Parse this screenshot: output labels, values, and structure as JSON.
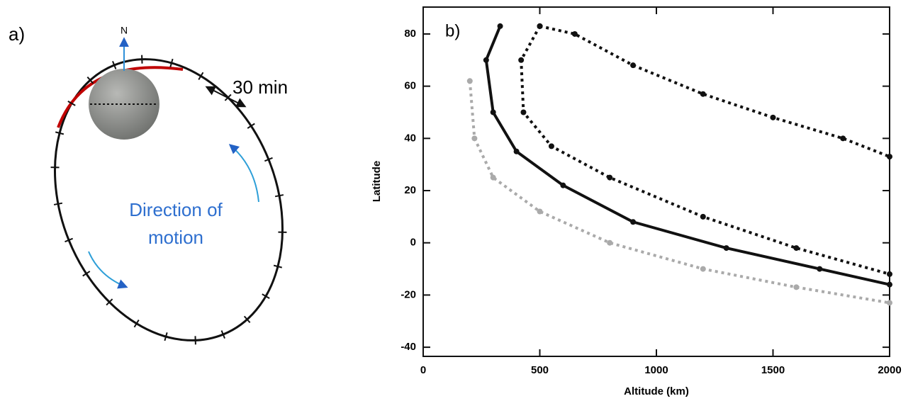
{
  "panel_a": {
    "label": "a)",
    "north": "N",
    "interval": "30 min",
    "motion": [
      "Direction of",
      "motion"
    ]
  },
  "chart_data": {
    "type": "line",
    "label": "b)",
    "xlabel": "Altitude (km)",
    "ylabel": "Latitude",
    "xlim": [
      0,
      2000
    ],
    "ylim": [
      -43.5,
      90.3
    ],
    "xticks": [
      0,
      500,
      1000,
      1500,
      2000
    ],
    "yticks": [
      -40,
      -20,
      0,
      20,
      40,
      60,
      80
    ],
    "series": [
      {
        "color": "#aaaaaa",
        "dash": true,
        "x": [
          200,
          220,
          300,
          500,
          800,
          1200,
          1600,
          2000
        ],
        "values": [
          62,
          40,
          25,
          12,
          0,
          -10,
          -17,
          -23
        ]
      },
      {
        "color": "#111111",
        "dash": false,
        "x": [
          330,
          270,
          300,
          400,
          600,
          900,
          1300,
          1700,
          2000
        ],
        "values": [
          83,
          70,
          50,
          35,
          22,
          8,
          -2,
          -10,
          -16
        ]
      },
      {
        "color": "#111111",
        "dash": true,
        "x": [
          500,
          650,
          900,
          1200,
          1500,
          1800,
          2000
        ],
        "values": [
          83,
          80,
          68,
          57,
          48,
          40,
          33
        ]
      },
      {
        "color": "#111111",
        "dash": true,
        "x": [
          500,
          420,
          430,
          550,
          800,
          1200,
          1600,
          2000
        ],
        "values": [
          83,
          70,
          50,
          37,
          25,
          10,
          -2,
          -12
        ]
      }
    ]
  }
}
